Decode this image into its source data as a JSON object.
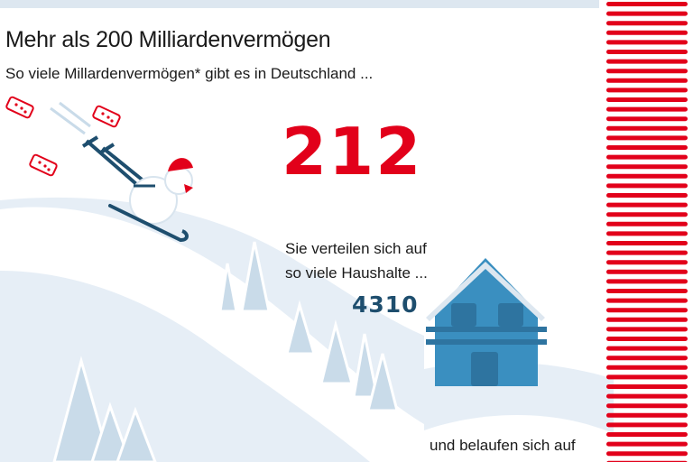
{
  "header": {
    "title": "Mehr als 200 Milliardenvermögen",
    "subtitle": "So viele Millardenvermögen* gibt es in Deutschland ..."
  },
  "main": {
    "billionaire_count": "212",
    "households_text_line1": "Sie verteilen sich auf",
    "households_text_line2": "so viele Haushalte ...",
    "household_count": "4310",
    "continuation_text": "und belaufen sich auf"
  },
  "colors": {
    "accent_red": "#e2001a",
    "number_blue": "#1e4e6e",
    "house_blue": "#3a8fc0",
    "snow": "#e6eef6"
  },
  "icons": [
    "banknote-icon",
    "skiing-snowman-icon",
    "house-icon",
    "tree-icon",
    "striped-bar"
  ]
}
